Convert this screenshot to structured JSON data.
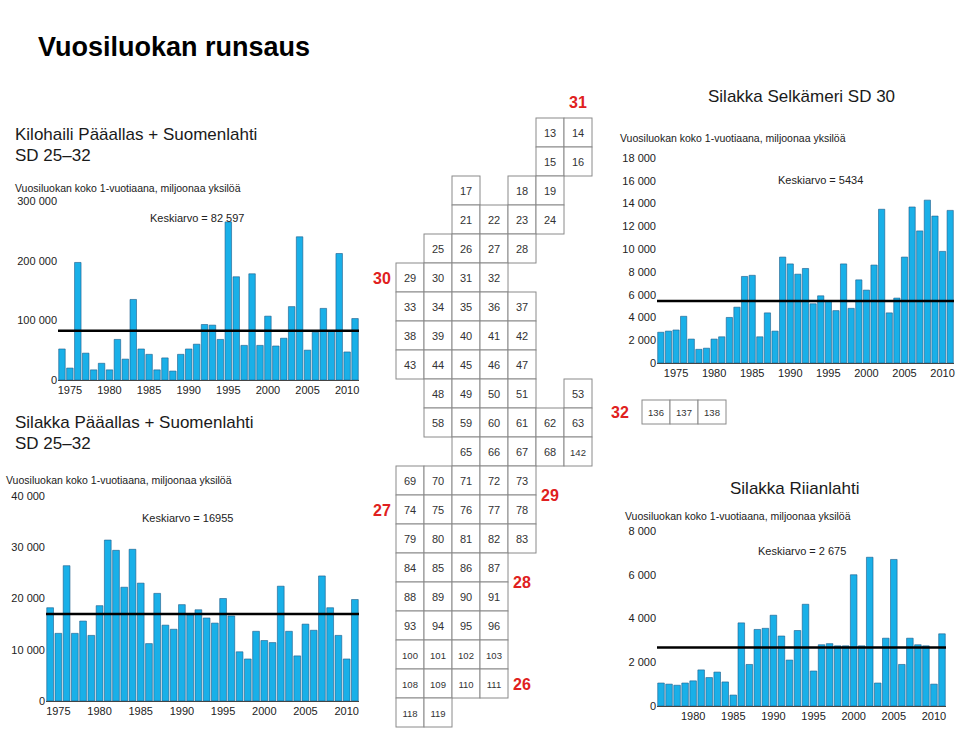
{
  "title": "Vuosiluokan runsaus",
  "chart_data": [
    {
      "type": "bar",
      "title": [
        "Kilohaili Pääallas + Suomenlahti",
        "SD 25–32"
      ],
      "subtitle": "Vuosiluokan koko 1-vuotiaana, miljoonaa yksilöä",
      "x": [
        1974,
        1975,
        1976,
        1977,
        1978,
        1979,
        1980,
        1981,
        1982,
        1983,
        1984,
        1985,
        1986,
        1987,
        1988,
        1989,
        1990,
        1991,
        1992,
        1993,
        1994,
        1995,
        1996,
        1997,
        1998,
        1999,
        2000,
        2001,
        2002,
        2003,
        2004,
        2005,
        2006,
        2007,
        2008,
        2009,
        2010,
        2011
      ],
      "values": [
        52000,
        20000,
        197000,
        45000,
        17000,
        28000,
        17000,
        68000,
        35000,
        135000,
        52000,
        43000,
        17000,
        37000,
        15000,
        43000,
        52000,
        60000,
        93000,
        92000,
        68000,
        265000,
        173000,
        58000,
        178000,
        58000,
        107000,
        57000,
        70000,
        123000,
        240000,
        50000,
        80000,
        120000,
        82000,
        212000,
        47000,
        103000
      ],
      "color": "#19b0e8",
      "xlim": [
        1973.5,
        2011.5
      ],
      "xticks": [
        1975,
        1980,
        1985,
        1990,
        1995,
        2000,
        2005,
        2010
      ],
      "ylim": [
        0,
        300000
      ],
      "yticks": [
        0,
        {
          "value": 100000,
          "label": "100 000"
        },
        {
          "value": 200000,
          "label": "200 000"
        },
        {
          "value": 300000,
          "label": "300 000"
        }
      ],
      "grid": false,
      "reference_line": {
        "value": 82597,
        "label": "Keskiarvo = 82 597"
      }
    },
    {
      "type": "bar",
      "title": [
        "Silakka Pääallas + Suomenlahti",
        "SD 25–32"
      ],
      "subtitle": "Vuosiluokan koko 1-vuotiaana, miljoonaa yksilöä",
      "x": [
        1974,
        1975,
        1976,
        1977,
        1978,
        1979,
        1980,
        1981,
        1982,
        1983,
        1984,
        1985,
        1986,
        1987,
        1988,
        1989,
        1990,
        1991,
        1992,
        1993,
        1994,
        1995,
        1996,
        1997,
        1998,
        1999,
        2000,
        2001,
        2002,
        2003,
        2004,
        2005,
        2006,
        2007,
        2008,
        2009,
        2010,
        2011
      ],
      "values": [
        18200,
        13200,
        26400,
        13200,
        15600,
        12800,
        18600,
        31400,
        29400,
        22200,
        29600,
        23000,
        11200,
        21000,
        14800,
        14000,
        18800,
        16800,
        17800,
        16200,
        15200,
        20000,
        16600,
        9600,
        8200,
        13600,
        11800,
        11400,
        22400,
        13600,
        8800,
        15000,
        13800,
        24400,
        18200,
        12800,
        8200,
        19800
      ],
      "color": "#19b0e8",
      "xlim": [
        1973.5,
        2011.5
      ],
      "xticks": [
        1975,
        1980,
        1985,
        1990,
        1995,
        2000,
        2005,
        2010
      ],
      "ylim": [
        0,
        40000
      ],
      "yticks": [
        0,
        {
          "value": 10000,
          "label": "10 000"
        },
        {
          "value": 20000,
          "label": "20 000"
        },
        {
          "value": 30000,
          "label": "30 000"
        },
        {
          "value": 40000,
          "label": "40 000"
        }
      ],
      "grid": false,
      "reference_line": {
        "value": 16955,
        "label": "Keskiarvo = 16955"
      }
    },
    {
      "type": "bar",
      "title": [
        "Silakka Selkämeri  SD 30"
      ],
      "subtitle": "Vuosiluokan koko 1-vuotiaana, miljoonaa yksilöä",
      "x": [
        1973,
        1974,
        1975,
        1976,
        1977,
        1978,
        1979,
        1980,
        1981,
        1982,
        1983,
        1984,
        1985,
        1986,
        1987,
        1988,
        1989,
        1990,
        1991,
        1992,
        1993,
        1994,
        1995,
        1996,
        1997,
        1998,
        1999,
        2000,
        2001,
        2002,
        2003,
        2004,
        2005,
        2006,
        2007,
        2008,
        2009,
        2010,
        2011
      ],
      "values": [
        2700,
        2800,
        2900,
        4100,
        2100,
        1200,
        1300,
        2100,
        2300,
        4000,
        4900,
        7600,
        7700,
        2300,
        4400,
        2800,
        9300,
        8700,
        7800,
        8300,
        5200,
        5900,
        5400,
        4600,
        8700,
        4800,
        7300,
        6400,
        8600,
        13500,
        4400,
        5700,
        9300,
        13700,
        11600,
        14300,
        12900,
        9800,
        13400
      ],
      "color": "#19b0e8",
      "xlim": [
        1972.5,
        2011.5
      ],
      "xticks": [
        1975,
        1980,
        1985,
        1990,
        1995,
        2000,
        2005,
        2010
      ],
      "ylim": [
        0,
        18000
      ],
      "yticks": [
        0,
        {
          "value": 2000,
          "label": "2 000"
        },
        {
          "value": 4000,
          "label": "4 000"
        },
        {
          "value": 6000,
          "label": "6 000"
        },
        {
          "value": 8000,
          "label": "8 000"
        },
        {
          "value": 10000,
          "label": "10 000"
        },
        {
          "value": 12000,
          "label": "12 000"
        },
        {
          "value": 14000,
          "label": "14 000"
        },
        {
          "value": 16000,
          "label": "16 000"
        },
        {
          "value": 18000,
          "label": "18 000"
        }
      ],
      "grid": false,
      "reference_line": {
        "value": 5434,
        "label": "Keskiarvo = 5434"
      }
    },
    {
      "type": "bar",
      "title": [
        "Silakka Riianlahti"
      ],
      "subtitle": "Vuosiluokan koko 1-vuotiaana, miljoonaa yksilöä",
      "x": [
        1976,
        1977,
        1978,
        1979,
        1980,
        1981,
        1982,
        1983,
        1984,
        1985,
        1986,
        1987,
        1988,
        1989,
        1990,
        1991,
        1992,
        1993,
        1994,
        1995,
        1996,
        1997,
        1998,
        1999,
        2000,
        2001,
        2002,
        2003,
        2004,
        2005,
        2006,
        2007,
        2008,
        2009,
        2010,
        2011
      ],
      "values": [
        1050,
        1000,
        950,
        1050,
        1150,
        1650,
        1300,
        1550,
        1100,
        500,
        3800,
        1900,
        3500,
        3550,
        4150,
        3200,
        2100,
        3450,
        4650,
        1600,
        2800,
        2850,
        2750,
        2750,
        6000,
        2750,
        6800,
        1050,
        3100,
        6700,
        1900,
        3100,
        2800,
        2750,
        1000,
        3300
      ],
      "color": "#19b0e8",
      "xlim": [
        1975.5,
        2011.5
      ],
      "xticks": [
        1980,
        1985,
        1990,
        1995,
        2000,
        2005,
        2010
      ],
      "ylim": [
        0,
        8000
      ],
      "yticks": [
        0,
        {
          "value": 2000,
          "label": "2 000"
        },
        {
          "value": 4000,
          "label": "4 000"
        },
        {
          "value": 6000,
          "label": "6 000"
        },
        {
          "value": 8000,
          "label": "8 000"
        }
      ],
      "grid": false,
      "reference_line": {
        "value": 2675,
        "label": "Keskiarvo = 2 675"
      }
    }
  ],
  "map": {
    "rectangles": [
      [
        null,
        null,
        null,
        null,
        null,
        null,
        "13",
        "14"
      ],
      [
        null,
        null,
        null,
        null,
        null,
        null,
        "15",
        "16"
      ],
      [
        null,
        null,
        null,
        "17",
        null,
        "18",
        "19",
        null
      ],
      [
        null,
        null,
        null,
        "21",
        "22",
        "23",
        "24",
        null
      ],
      [
        null,
        null,
        "25",
        "26",
        "27",
        "28",
        null,
        null
      ],
      [
        null,
        "29",
        "30",
        "31",
        "32",
        null,
        null,
        null
      ],
      [
        null,
        "33",
        "34",
        "35",
        "36",
        "37",
        null,
        null
      ],
      [
        null,
        "38",
        "39",
        "40",
        "41",
        "42",
        null,
        null
      ],
      [
        null,
        "43",
        "44",
        "45",
        "46",
        "47",
        null,
        null
      ],
      [
        null,
        null,
        "48",
        "49",
        "50",
        "51",
        null,
        "53"
      ],
      [
        null,
        null,
        "58",
        "59",
        "60",
        "61",
        "62",
        "63"
      ],
      [
        null,
        null,
        null,
        "65",
        "66",
        "67",
        "68",
        "142"
      ],
      [
        null,
        "69",
        "70",
        "71",
        "72",
        "73",
        null,
        null
      ],
      [
        null,
        "74",
        "75",
        "76",
        "77",
        "78",
        null,
        null
      ],
      [
        null,
        "79",
        "80",
        "81",
        "82",
        "83",
        null,
        null
      ],
      [
        null,
        "84",
        "85",
        "86",
        "87",
        null,
        null,
        null
      ],
      [
        null,
        "88",
        "89",
        "90",
        "91",
        null,
        null,
        null
      ],
      [
        null,
        "93",
        "94",
        "95",
        "96",
        null,
        null,
        null
      ],
      [
        null,
        "100",
        "101",
        "102",
        "103",
        null,
        null,
        null
      ],
      [
        null,
        "108",
        "109",
        "110",
        "111",
        null,
        null,
        null
      ],
      [
        null,
        "118",
        "119",
        null,
        null,
        null,
        null,
        null
      ]
    ],
    "extra_rectangles": [
      "136",
      "137",
      "138"
    ],
    "subdivisions": [
      "31",
      "30",
      "29",
      "32",
      "27",
      "28",
      "26"
    ]
  }
}
